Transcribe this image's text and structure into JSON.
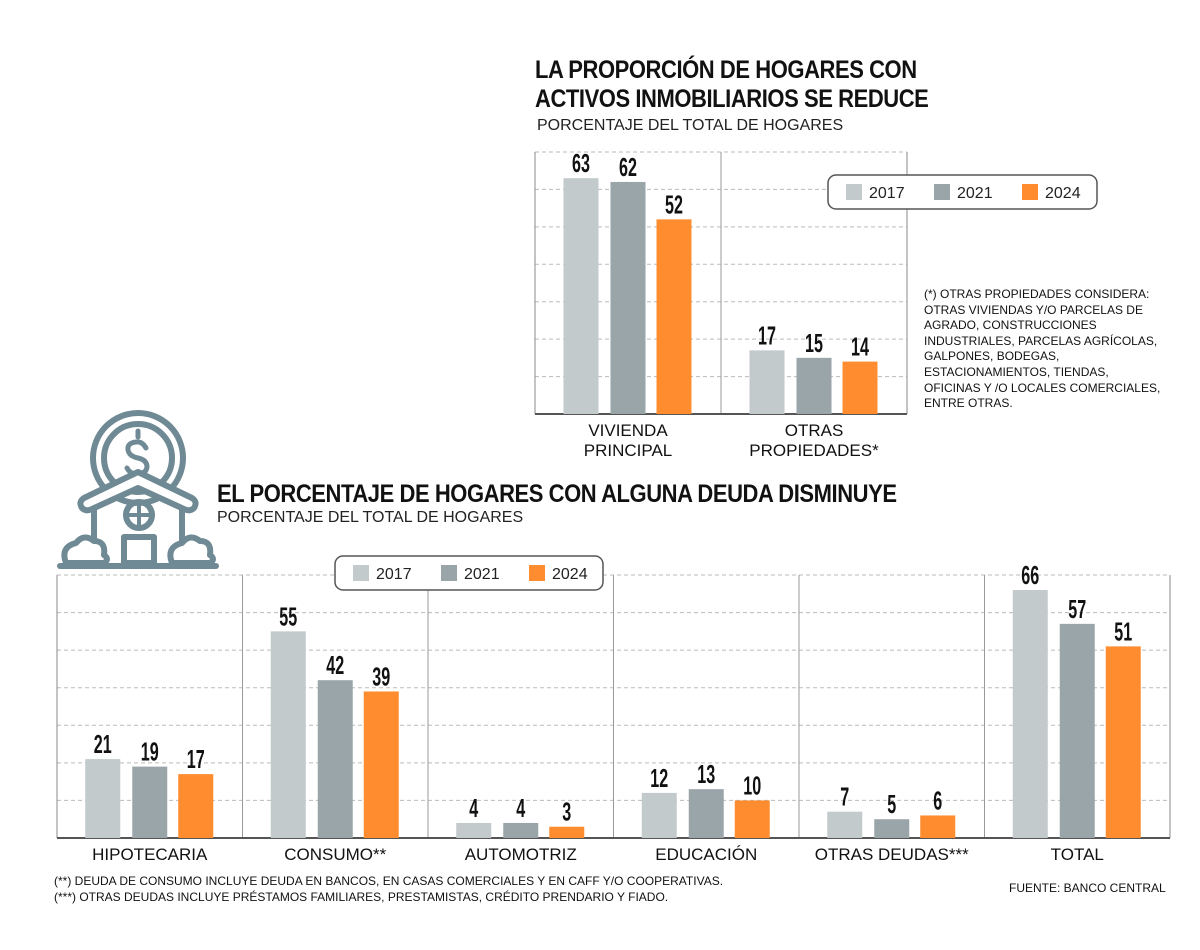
{
  "colors": {
    "2017": "#c2cacc",
    "2021": "#9aa5a9",
    "2024": "#ff8c2f",
    "icon": "#6f8a94"
  },
  "icon": "house-with-dollar-coin-icon",
  "chart_data": [
    {
      "type": "bar",
      "title": "LA PROPORCIÓN DE HOGARES CON ACTIVOS INMOBILIARIOS SE REDUCE",
      "title_lines": [
        "LA PROPORCIÓN DE HOGARES CON",
        "ACTIVOS INMOBILIARIOS SE REDUCE"
      ],
      "subtitle": "PORCENTAJE DEL TOTAL DE HOGARES",
      "categories": [
        "VIVIENDA PRINCIPAL",
        "OTRAS PROPIEDADES*"
      ],
      "category_lines": [
        [
          "VIVIENDA",
          "PRINCIPAL"
        ],
        [
          "OTRAS",
          "PROPIEDADES*"
        ]
      ],
      "series": [
        {
          "name": "2017",
          "values": [
            63,
            17
          ]
        },
        {
          "name": "2021",
          "values": [
            62,
            15
          ]
        },
        {
          "name": "2024",
          "values": [
            52,
            14
          ]
        }
      ],
      "ylim": [
        0,
        70
      ],
      "grid": true,
      "legend": "top-right",
      "footnote_lines": [
        "(*) OTRAS PROPIEDADES CONSIDERA:",
        "OTRAS VIVIENDAS Y/O PARCELAS DE",
        "AGRADO, CONSTRUCCIONES",
        "INDUSTRIALES, PARCELAS AGRÍCOLAS,",
        "GALPONES, BODEGAS,",
        "ESTACIONAMIENTOS, TIENDAS,",
        "OFICINAS Y /O LOCALES COMERCIALES,",
        "ENTRE OTRAS."
      ]
    },
    {
      "type": "bar",
      "title": "EL PORCENTAJE DE HOGARES CON ALGUNA DEUDA DISMINUYE",
      "subtitle": "PORCENTAJE DEL TOTAL DE HOGARES",
      "categories": [
        "HIPOTECARIA",
        "CONSUMO**",
        "AUTOMOTRIZ",
        "EDUCACIÓN",
        "OTRAS DEUDAS***",
        "TOTAL"
      ],
      "series": [
        {
          "name": "2017",
          "values": [
            21,
            55,
            4,
            12,
            7,
            66
          ]
        },
        {
          "name": "2021",
          "values": [
            19,
            42,
            4,
            13,
            5,
            57
          ]
        },
        {
          "name": "2024",
          "values": [
            17,
            39,
            3,
            10,
            6,
            51
          ]
        }
      ],
      "ylim": [
        0,
        70
      ],
      "grid": true,
      "legend": "top-left",
      "footnotes": [
        "(**) DEUDA DE CONSUMO INCLUYE DEUDA EN BANCOS, EN CASAS COMERCIALES Y EN CAFF Y/O COOPERATIVAS.",
        "(***) OTRAS DEUDAS INCLUYE PRÉSTAMOS FAMILIARES, PRESTAMISTAS, CRÉDITO PRENDARIO Y FIADO."
      ],
      "source": "FUENTE: BANCO CENTRAL"
    }
  ]
}
